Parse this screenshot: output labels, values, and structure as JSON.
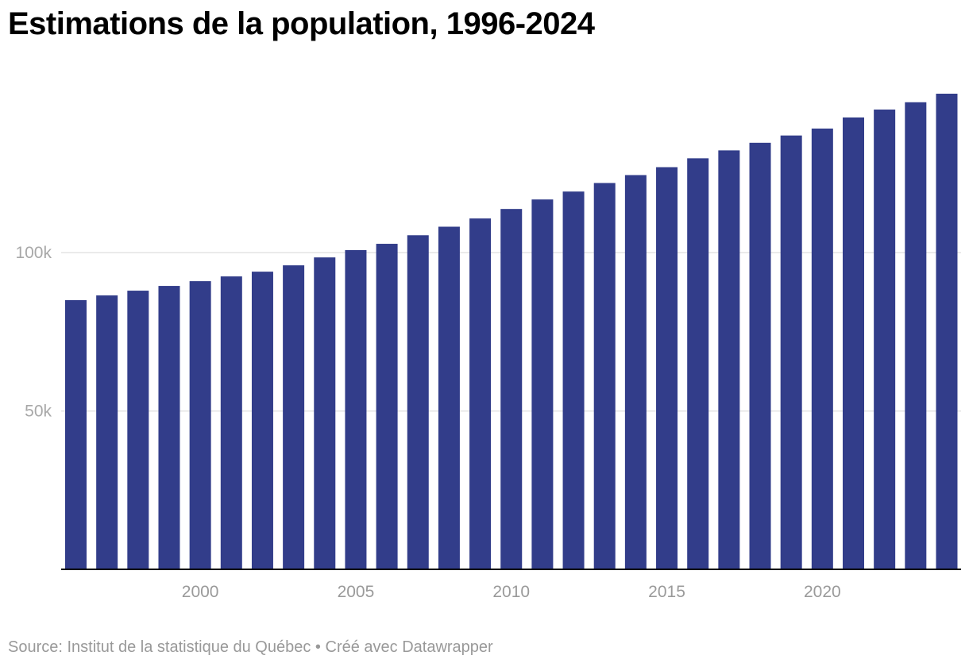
{
  "title": "Estimations de la population, 1996-2024",
  "footer": {
    "source_label": "Source:",
    "source": "Institut de la statistique du Québec",
    "separator": "•",
    "credit": "Créé avec Datawrapper"
  },
  "colors": {
    "bar": "#323d8a",
    "grid": "#e3e3e3",
    "baseline": "#000000",
    "text_muted": "#999999"
  },
  "chart_data": {
    "type": "bar",
    "title": "Estimations de la population, 1996-2024",
    "xlabel": "",
    "ylabel": "",
    "x": [
      1996,
      1997,
      1998,
      1999,
      2000,
      2001,
      2002,
      2003,
      2004,
      2005,
      2006,
      2007,
      2008,
      2009,
      2010,
      2011,
      2012,
      2013,
      2014,
      2015,
      2016,
      2017,
      2018,
      2019,
      2020,
      2021,
      2022,
      2023,
      2024
    ],
    "values": [
      85000,
      86500,
      88000,
      89500,
      91000,
      92500,
      94000,
      96000,
      98500,
      100800,
      102800,
      105500,
      108200,
      110800,
      113800,
      116800,
      119300,
      122000,
      124500,
      127000,
      129800,
      132300,
      134700,
      137000,
      139200,
      142700,
      145200,
      147500,
      150200
    ],
    "ylim": [
      0,
      150200
    ],
    "yticks": [
      50000,
      100000
    ],
    "ytick_labels": [
      "50k",
      "100k"
    ],
    "xticks": [
      2000,
      2005,
      2010,
      2015,
      2020
    ],
    "xtick_labels": [
      "2000",
      "2005",
      "2010",
      "2015",
      "2020"
    ],
    "grid": true,
    "legend": "none"
  }
}
